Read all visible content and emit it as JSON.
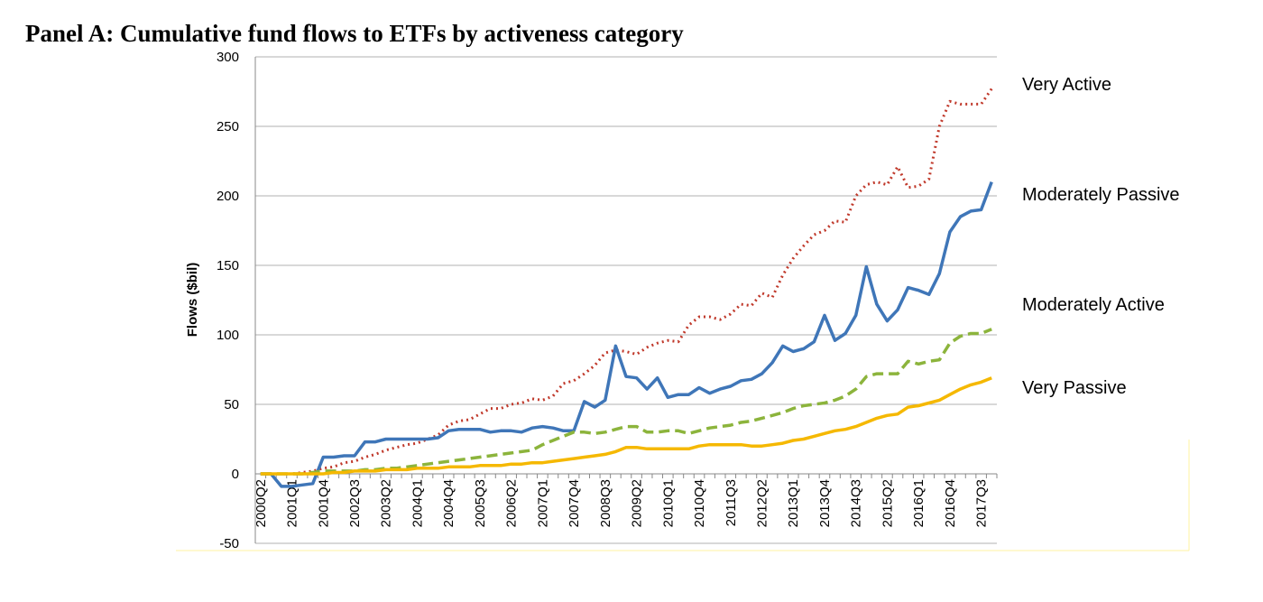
{
  "chart_data": {
    "type": "line",
    "title": "Panel A: Cumulative fund flows to ETFs by activeness category",
    "y_label": "Flows ($bil)",
    "categories": [
      "2000Q2",
      null,
      null,
      "2001Q1",
      null,
      null,
      "2001Q4",
      null,
      null,
      "2002Q3",
      null,
      null,
      "2003Q2",
      null,
      null,
      "2004Q1",
      null,
      null,
      "2004Q4",
      null,
      null,
      "2005Q3",
      null,
      null,
      "2006Q2",
      null,
      null,
      "2007Q1",
      null,
      null,
      "2007Q4",
      null,
      null,
      "2008Q3",
      null,
      null,
      "2009Q2",
      null,
      null,
      "2010Q1",
      null,
      null,
      "2010Q4",
      null,
      null,
      "2011Q3",
      null,
      null,
      "2012Q2",
      null,
      null,
      "2013Q1",
      null,
      null,
      "2013Q4",
      null,
      null,
      "2014Q3",
      null,
      null,
      "2015Q2",
      null,
      null,
      "2016Q1",
      null,
      null,
      "2016Q4",
      null,
      null,
      "2017Q3",
      null
    ],
    "series": [
      {
        "name": "Very Active",
        "color": "#c0392b",
        "dash": "dotted",
        "values": [
          0,
          0,
          0,
          0,
          1,
          2,
          4,
          5,
          8,
          9,
          12,
          14,
          17,
          19,
          21,
          22,
          25,
          28,
          35,
          38,
          39,
          43,
          47,
          47,
          50,
          51,
          54,
          53,
          56,
          65,
          67,
          72,
          78,
          87,
          89,
          88,
          86,
          91,
          94,
          96,
          95,
          107,
          113,
          113,
          111,
          115,
          122,
          121,
          130,
          127,
          143,
          155,
          164,
          172,
          175,
          182,
          181,
          200,
          208,
          210,
          208,
          221,
          206,
          207,
          212,
          250,
          268,
          266,
          266,
          266,
          277
        ]
      },
      {
        "name": "Moderately Passive",
        "color": "#3f76b8",
        "dash": "solid",
        "values": [
          0,
          0,
          -9,
          -9,
          -8,
          -7,
          12,
          12,
          13,
          13,
          23,
          23,
          25,
          25,
          25,
          25,
          25,
          26,
          31,
          32,
          32,
          32,
          30,
          31,
          31,
          30,
          33,
          34,
          33,
          31,
          31,
          52,
          48,
          53,
          92,
          70,
          69,
          61,
          69,
          55,
          57,
          57,
          62,
          58,
          61,
          63,
          67,
          68,
          72,
          80,
          92,
          88,
          90,
          95,
          114,
          96,
          101,
          114,
          149,
          122,
          110,
          118,
          134,
          132,
          129,
          144,
          174,
          185,
          189,
          190,
          210
        ]
      },
      {
        "name": "Moderately Active",
        "color": "#8cb43c",
        "dash": "dashed",
        "values": [
          0,
          0,
          0,
          0,
          0,
          1,
          2,
          2,
          2,
          2,
          3,
          3,
          4,
          4,
          5,
          6,
          7,
          8,
          9,
          10,
          11,
          12,
          13,
          14,
          15,
          16,
          17,
          21,
          24,
          27,
          30,
          30,
          29,
          30,
          32,
          34,
          34,
          30,
          30,
          31,
          31,
          29,
          31,
          33,
          34,
          35,
          37,
          38,
          40,
          42,
          44,
          47,
          49,
          50,
          51,
          53,
          56,
          61,
          70,
          72,
          72,
          72,
          81,
          79,
          81,
          82,
          94,
          99,
          101,
          101,
          104
        ]
      },
      {
        "name": "Very Passive",
        "color": "#f5b800",
        "dash": "solid",
        "values": [
          0,
          0,
          0,
          0,
          0,
          0,
          0,
          1,
          1,
          2,
          2,
          2,
          3,
          3,
          3,
          4,
          4,
          4,
          5,
          5,
          5,
          6,
          6,
          6,
          7,
          7,
          8,
          8,
          9,
          10,
          11,
          12,
          13,
          14,
          16,
          19,
          19,
          18,
          18,
          18,
          18,
          18,
          20,
          21,
          21,
          21,
          21,
          20,
          20,
          21,
          22,
          24,
          25,
          27,
          29,
          31,
          32,
          34,
          37,
          40,
          42,
          43,
          48,
          49,
          51,
          53,
          57,
          61,
          64,
          66,
          69
        ]
      }
    ],
    "ylim": [
      -50,
      300
    ],
    "yticks": [
      -50,
      0,
      50,
      100,
      150,
      200,
      250,
      300
    ],
    "grid": true
  }
}
